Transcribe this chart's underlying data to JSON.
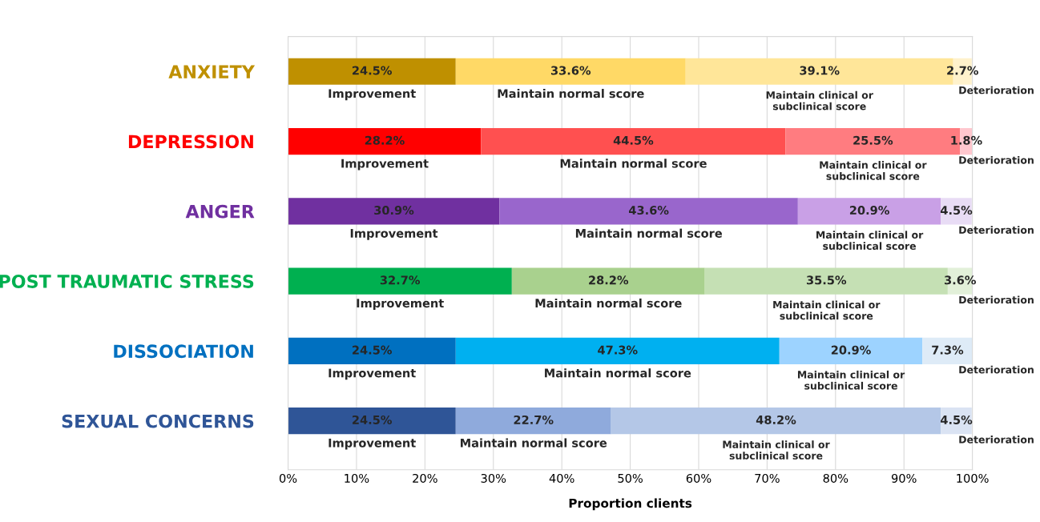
{
  "chart_data": {
    "type": "bar",
    "orientation": "horizontal",
    "stacked": true,
    "categories": [
      "ANXIETY",
      "DEPRESSION",
      "ANGER",
      "POST TRAUMATIC STRESS",
      "DISSOCIATION",
      "SEXUAL CONCERNS"
    ],
    "series": [
      {
        "name": "Improvement",
        "colors": [
          "#bf9000",
          "#ff0000",
          "#7030a0",
          "#00b050",
          "#0070c0",
          "#2f5597"
        ],
        "values": [
          24.5,
          28.2,
          30.9,
          32.7,
          24.5,
          24.5
        ],
        "value_labels": [
          "24.5%",
          "28.2%",
          "30.9%",
          "32.7%",
          "24.5%",
          "24.5%"
        ]
      },
      {
        "name": "Maintain normal score",
        "colors": [
          "#ffd966",
          "#ff5050",
          "#9966cc",
          "#a9d18e",
          "#00b0f0",
          "#8faadc"
        ],
        "values": [
          33.6,
          44.5,
          43.6,
          28.2,
          47.3,
          22.7
        ],
        "value_labels": [
          "33.6%",
          "44.5%",
          "43.6%",
          "28.2%",
          "47.3%",
          "22.7%"
        ]
      },
      {
        "name": "Maintain clinical or\nsubclinical score",
        "colors": [
          "#ffe699",
          "#ff7c80",
          "#c9a0e6",
          "#c5e0b4",
          "#9dd3ff",
          "#b4c7e7"
        ],
        "values": [
          39.1,
          25.5,
          20.9,
          35.5,
          20.9,
          48.2
        ],
        "value_labels": [
          "39.1%",
          "25.5%",
          "20.9%",
          "35.5%",
          "20.9%",
          "48.2%"
        ]
      },
      {
        "name": "Deterioration",
        "colors": [
          "#fff2cc",
          "#ffc7ce",
          "#e8dcf5",
          "#e2f0d9",
          "#deebf7",
          "#dae3f3"
        ],
        "values": [
          2.7,
          1.8,
          4.5,
          3.6,
          7.3,
          4.5
        ],
        "value_labels": [
          "2.7%",
          "1.8%",
          "4.5%",
          "3.6%",
          "7.3%",
          "4.5%"
        ]
      }
    ],
    "xlabel": "Proportion clients",
    "xlim": [
      0,
      100
    ],
    "xticks": [
      {
        "value": 0,
        "label": "0%"
      },
      {
        "value": 10,
        "label": "10%"
      },
      {
        "value": 20,
        "label": "20%"
      },
      {
        "value": 30,
        "label": "30%"
      },
      {
        "value": 40,
        "label": "40%"
      },
      {
        "value": 50,
        "label": "50%"
      },
      {
        "value": 60,
        "label": "60%"
      },
      {
        "value": 70,
        "label": "70%"
      },
      {
        "value": 80,
        "label": "80%"
      },
      {
        "value": 90,
        "label": "90%"
      },
      {
        "value": 100,
        "label": "100%"
      }
    ],
    "grid": "x",
    "legend": false
  }
}
